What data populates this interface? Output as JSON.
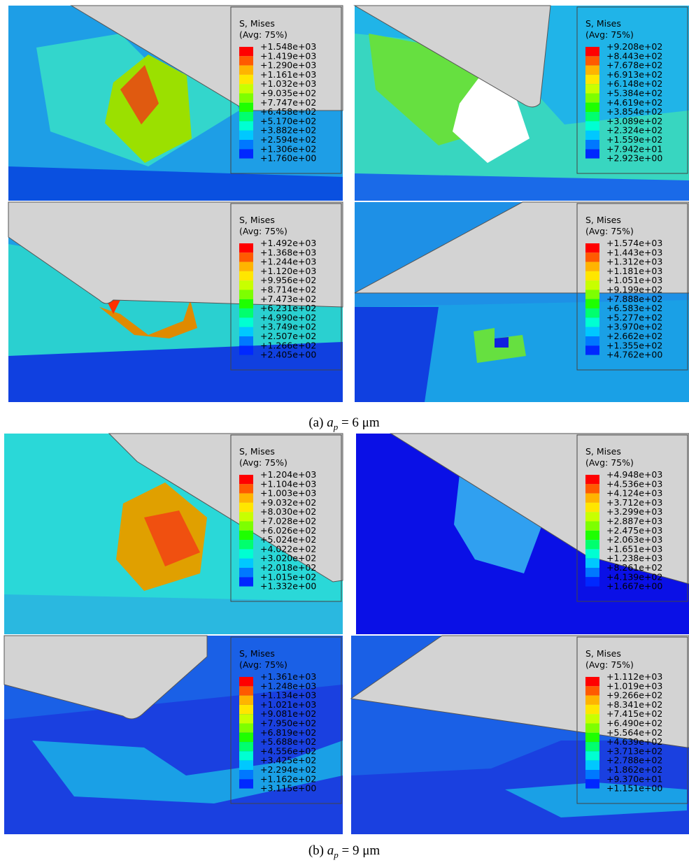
{
  "panels": [
    {
      "legend_title": "S, Mises",
      "legend_avg": "(Avg: 75%)",
      "labels": [
        "+1.548e+03",
        "+1.419e+03",
        "+1.290e+03",
        "+1.161e+03",
        "+1.032e+03",
        "+9.035e+02",
        "+7.747e+02",
        "+6.458e+02",
        "+5.170e+02",
        "+3.882e+02",
        "+2.594e+02",
        "+1.306e+02",
        "+1.760e+00"
      ]
    },
    {
      "legend_title": "S, Mises",
      "legend_avg": "(Avg: 75%)",
      "labels": [
        "+9.208e+02",
        "+8.443e+02",
        "+7.678e+02",
        "+6.913e+02",
        "+6.148e+02",
        "+5.384e+02",
        "+4.619e+02",
        "+3.854e+02",
        "+3.089e+02",
        "+2.324e+02",
        "+1.559e+02",
        "+7.942e+01",
        "+2.923e+00"
      ]
    },
    {
      "legend_title": "S, Mises",
      "legend_avg": "(Avg: 75%)",
      "labels": [
        "+1.492e+03",
        "+1.368e+03",
        "+1.244e+03",
        "+1.120e+03",
        "+9.956e+02",
        "+8.714e+02",
        "+7.473e+02",
        "+6.231e+02",
        "+4.990e+02",
        "+3.749e+02",
        "+2.507e+02",
        "+1.266e+02",
        "+2.405e+00"
      ]
    },
    {
      "legend_title": "S, Mises",
      "legend_avg": "(Avg: 75%)",
      "labels": [
        "+1.574e+03",
        "+1.443e+03",
        "+1.312e+03",
        "+1.181e+03",
        "+1.051e+03",
        "+9.199e+02",
        "+7.888e+02",
        "+6.583e+02",
        "+5.277e+02",
        "+3.970e+02",
        "+2.662e+02",
        "+1.355e+02",
        "+4.762e+00"
      ]
    },
    {
      "legend_title": "S, Mises",
      "legend_avg": "(Avg: 75%)",
      "labels": [
        "+1.204e+03",
        "+1.104e+03",
        "+1.003e+03",
        "+9.032e+02",
        "+8.030e+02",
        "+7.028e+02",
        "+6.026e+02",
        "+5.024e+02",
        "+4.022e+02",
        "+3.020e+02",
        "+2.018e+02",
        "+1.015e+02",
        "+1.332e+00"
      ]
    },
    {
      "legend_title": "S, Mises",
      "legend_avg": "(Avg: 75%)",
      "labels": [
        "+4.948e+03",
        "+4.536e+03",
        "+4.124e+03",
        "+3.712e+03",
        "+3.299e+03",
        "+2.887e+03",
        "+2.475e+03",
        "+2.063e+03",
        "+1.651e+03",
        "+1.238e+03",
        "+8.261e+02",
        "+4.139e+02",
        "+1.667e+00"
      ]
    },
    {
      "legend_title": "S, Mises",
      "legend_avg": "(Avg: 75%)",
      "labels": [
        "+1.361e+03",
        "+1.248e+03",
        "+1.134e+03",
        "+1.021e+03",
        "+9.081e+02",
        "+7.950e+02",
        "+6.819e+02",
        "+5.688e+02",
        "+4.556e+02",
        "+3.425e+02",
        "+2.294e+02",
        "+1.162e+02",
        "+3.115e+00"
      ]
    },
    {
      "legend_title": "S, Mises",
      "legend_avg": "(Avg: 75%)",
      "labels": [
        "+1.112e+03",
        "+1.019e+03",
        "+9.266e+02",
        "+8.341e+02",
        "+7.415e+02",
        "+6.490e+02",
        "+5.564e+02",
        "+4.639e+02",
        "+3.713e+02",
        "+2.788e+02",
        "+1.862e+02",
        "+9.370e+01",
        "+1.151e+00"
      ]
    }
  ],
  "captions": [
    {
      "prefix": "(a) ",
      "symbol": "a",
      "subscript": "p",
      "suffix": " = 6 μm"
    },
    {
      "prefix": "(b) ",
      "symbol": "a",
      "subscript": "p",
      "suffix": " = 9 μm"
    }
  ]
}
